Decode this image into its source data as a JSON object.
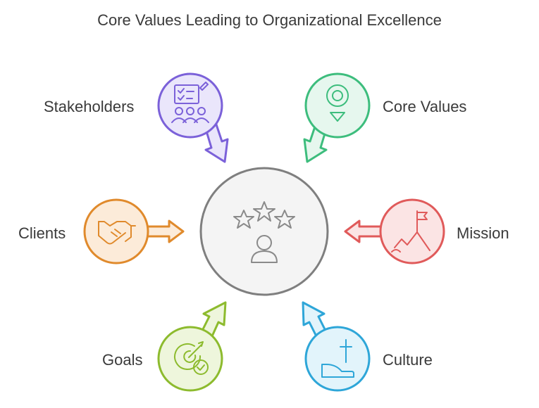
{
  "title": "Core Values Leading to Organizational Excellence",
  "center": {
    "icon": "three-stars-person-icon"
  },
  "nodes": [
    {
      "key": "stakeholders",
      "label": "Stakeholders",
      "icon": "checklist-people-icon",
      "color": "#7b61d9",
      "fill": "#eae6fb"
    },
    {
      "key": "core_values",
      "label": "Core Values",
      "icon": "target-pin-icon",
      "color": "#3dbd7d",
      "fill": "#e6f7ee"
    },
    {
      "key": "clients",
      "label": "Clients",
      "icon": "handshake-icon",
      "color": "#e08a2c",
      "fill": "#fcebd9"
    },
    {
      "key": "mission",
      "label": "Mission",
      "icon": "mountain-flag-icon",
      "color": "#e05a5a",
      "fill": "#fbe4e4"
    },
    {
      "key": "goals",
      "label": "Goals",
      "icon": "target-check-icon",
      "color": "#8dbb2e",
      "fill": "#eef6dc"
    },
    {
      "key": "culture",
      "label": "Culture",
      "icon": "cross-hand-icon",
      "color": "#2ea6d8",
      "fill": "#e2f4fb"
    }
  ]
}
